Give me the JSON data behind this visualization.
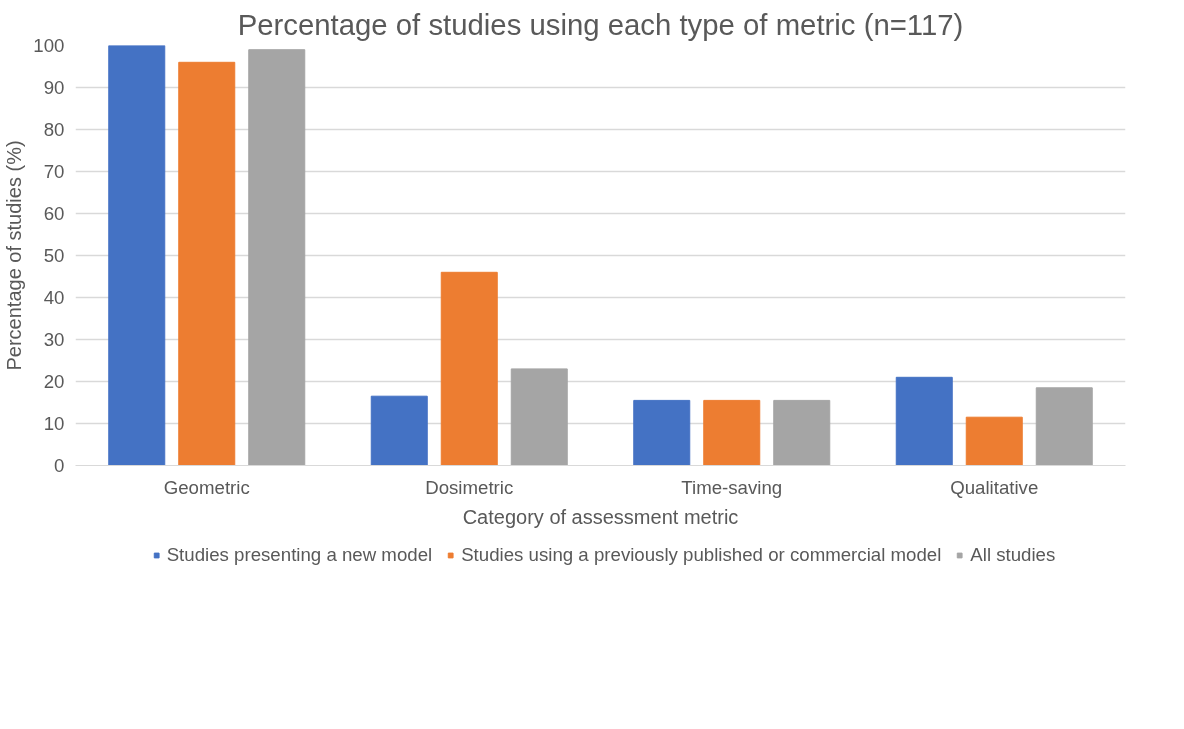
{
  "chart_data": {
    "type": "bar",
    "title": "Percentage of studies using each type of metric (n=117)",
    "xlabel": "Category of assessment metric",
    "ylabel": "Percentage of studies (%)",
    "categories": [
      "Geometric",
      "Dosimetric",
      "Time-saving",
      "Qualitative"
    ],
    "series": [
      {
        "name": "Studies presenting a new model",
        "color": "#4472c4",
        "values": [
          100,
          16.5,
          15.5,
          21
        ]
      },
      {
        "name": "Studies using a previously published or commercial model",
        "color": "#ed7d31",
        "values": [
          96,
          46,
          15.5,
          11.5
        ]
      },
      {
        "name": "All studies",
        "color": "#a5a5a5",
        "values": [
          99,
          23,
          15.5,
          18.5
        ]
      }
    ],
    "ylim": [
      0,
      100
    ],
    "yticks": [
      0,
      10,
      20,
      30,
      40,
      50,
      60,
      70,
      80,
      90,
      100
    ],
    "grid": "y",
    "legend": "bottom"
  }
}
